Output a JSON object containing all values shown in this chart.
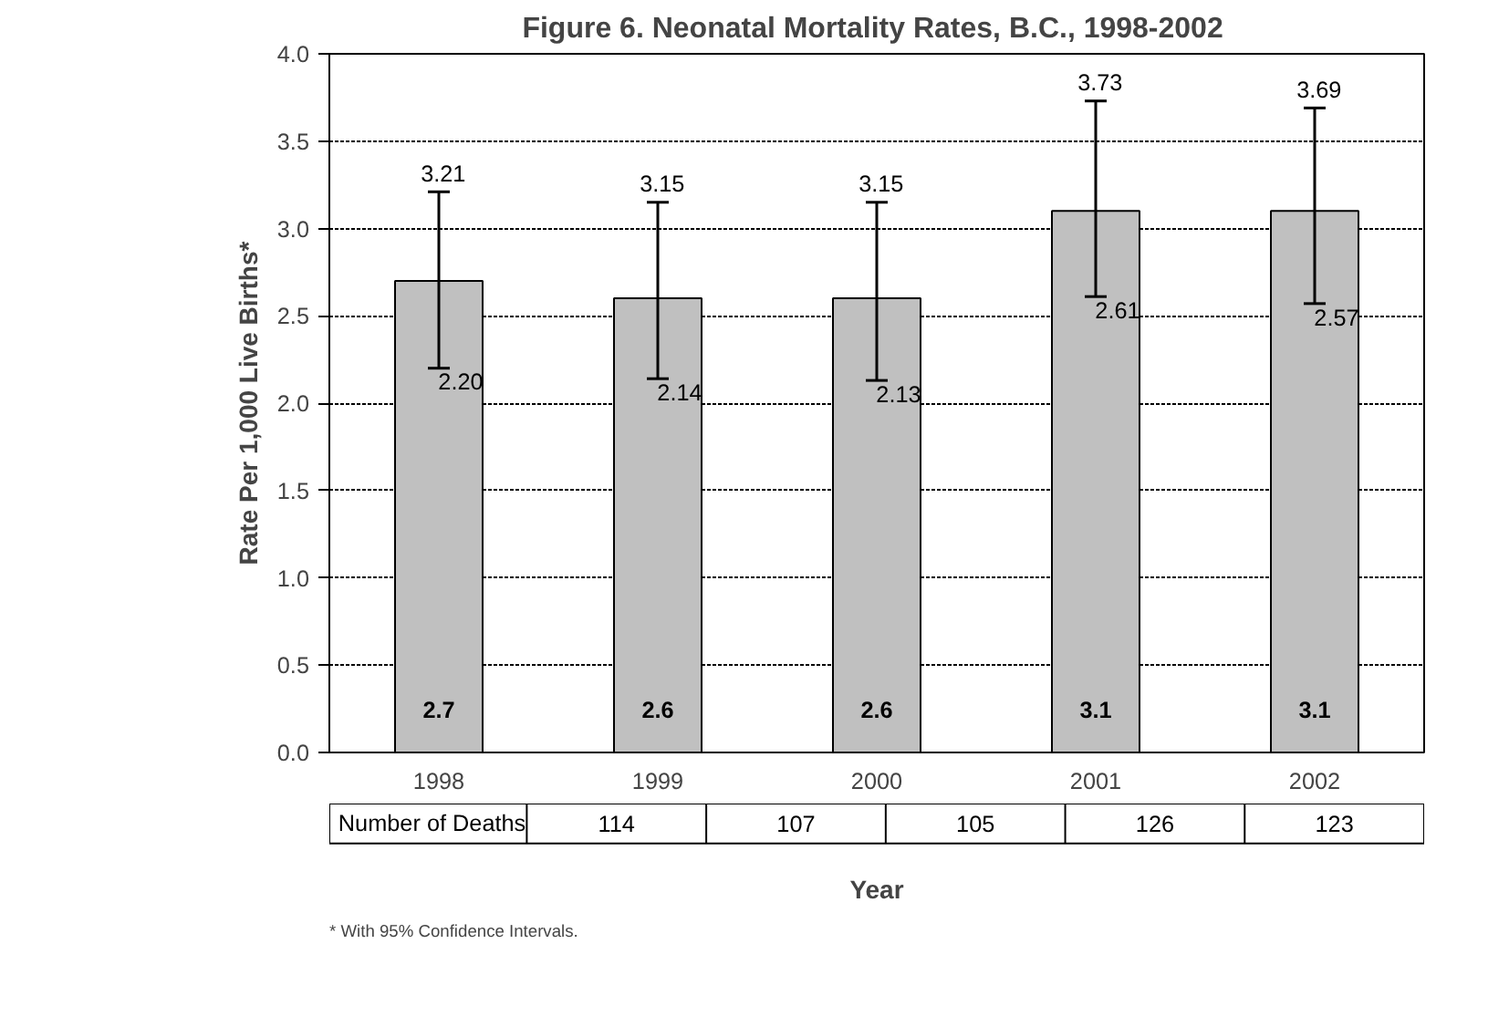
{
  "chart_data": {
    "type": "bar",
    "title": "Figure 6.  Neonatal Mortality Rates, B.C., 1998-2002",
    "xlabel": "Year",
    "ylabel": "Rate Per 1,000 Live Births*",
    "categories": [
      "1998",
      "1999",
      "2000",
      "2001",
      "2002"
    ],
    "values": [
      2.7,
      2.6,
      2.6,
      3.1,
      3.1
    ],
    "color": "#c0c0c0",
    "data_labels": true,
    "errors": [
      [
        2.2,
        3.21
      ],
      [
        2.14,
        3.15
      ],
      [
        2.13,
        3.15
      ],
      [
        2.61,
        3.73
      ],
      [
        2.57,
        3.69
      ]
    ],
    "ylim": [
      0,
      4
    ],
    "yticks": [
      {
        "value": 0,
        "label": "0.0"
      },
      {
        "value": 0.5,
        "label": "0.5"
      },
      {
        "value": 1,
        "label": "1.0"
      },
      {
        "value": 1.5,
        "label": "1.5"
      },
      {
        "value": 2,
        "label": "2.0"
      },
      {
        "value": 2.5,
        "label": "2.5"
      },
      {
        "value": 3,
        "label": "3.0"
      },
      {
        "value": 3.5,
        "label": "3.5"
      },
      {
        "value": 4,
        "label": "4.0"
      }
    ],
    "grid": "y",
    "annotations": [
      "Number of Deaths",
      "114",
      "107",
      "105",
      "126",
      "123",
      "* With 95% Confidence Intervals.",
      {
        "text": "3.21",
        "x": "1998",
        "y": 3.21
      },
      {
        "text": "2.20",
        "x": "1998",
        "y": 2.2
      },
      {
        "text": "3.15",
        "x": "1999",
        "y": 3.15
      },
      {
        "text": "2.14",
        "x": "1999",
        "y": 2.14
      },
      {
        "text": "3.15",
        "x": "2000",
        "y": 3.15
      },
      {
        "text": "2.13",
        "x": "2000",
        "y": 2.13
      },
      {
        "text": "3.73",
        "x": "2001",
        "y": 3.73
      },
      {
        "text": "2.61",
        "x": "2001",
        "y": 2.61
      },
      {
        "text": "3.69",
        "x": "2002",
        "y": 3.69
      },
      {
        "text": "2.57",
        "x": "2002",
        "y": 2.57
      }
    ]
  }
}
